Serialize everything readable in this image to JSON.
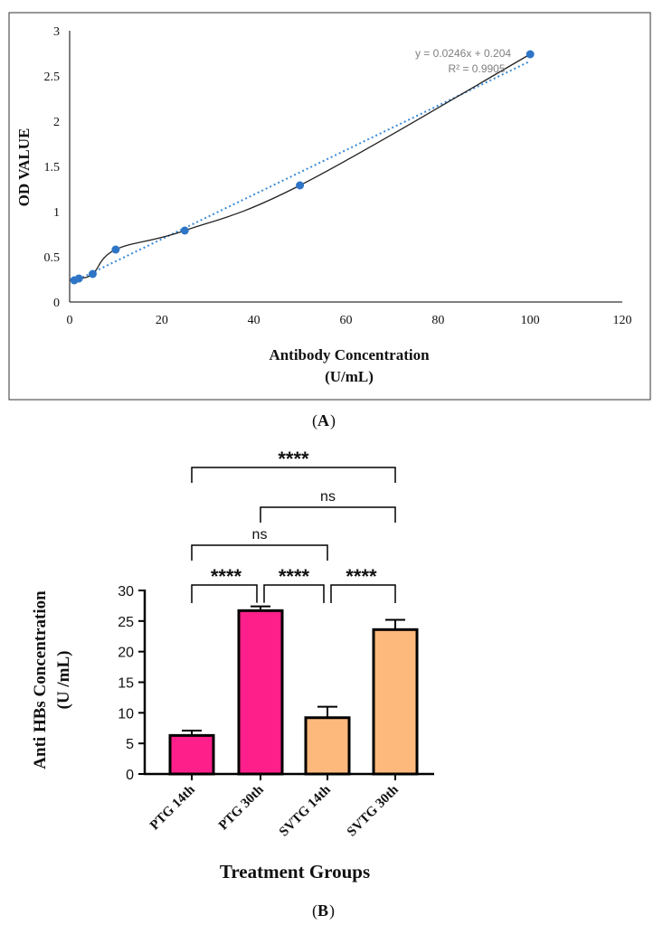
{
  "colors": {
    "marker_a": "#2e75c7",
    "trend_a": "#3a8ad6",
    "curve_a": "#222222",
    "ptg_fill": "#ff1f8a",
    "svtg_fill": "#fdb97c",
    "annotation_a": "#7f7f7f"
  },
  "chart_data": [
    {
      "id": "A",
      "panel_label": "A",
      "type": "scatter",
      "title": "",
      "xlabel_line1": "Antibody Concentration",
      "xlabel_line2": "(U/mL)",
      "ylabel": "OD VALUE",
      "xlim": [
        0,
        120
      ],
      "ylim": [
        0,
        3
      ],
      "xticks": [
        0,
        20,
        40,
        60,
        80,
        100,
        120
      ],
      "yticks": [
        0,
        0.5,
        1,
        1.5,
        2,
        2.5,
        3
      ],
      "grid": false,
      "series": [
        {
          "name": "OD",
          "x": [
            1,
            2,
            5,
            10,
            25,
            50,
            100
          ],
          "y": [
            0.24,
            0.26,
            0.31,
            0.58,
            0.79,
            1.29,
            2.74
          ]
        }
      ],
      "trendline": {
        "slope": 0.0246,
        "intercept": 0.204,
        "style": "dotted"
      },
      "equation_text": "y = 0.0246x + 0.204",
      "r2_text": "R² = 0.9905"
    },
    {
      "id": "B",
      "panel_label": "B",
      "type": "bar",
      "title": "",
      "xlabel": "Treatment Groups",
      "ylabel_line1": "Anti HBs Concentration",
      "ylabel_line2": "(U /mL)",
      "categories": [
        "PTG 14th",
        "PTG 30th",
        "SVTG 14th",
        "SVTG 30th"
      ],
      "values": [
        6.3,
        26.7,
        9.2,
        23.6
      ],
      "errors": [
        0.8,
        0.7,
        1.8,
        1.6
      ],
      "groups": [
        "PTG",
        "PTG",
        "SVTG",
        "SVTG"
      ],
      "ylim": [
        0,
        30
      ],
      "yticks": [
        0,
        5,
        10,
        15,
        20,
        25,
        30
      ],
      "comparisons": [
        {
          "from": 0,
          "to": 1,
          "label": "****",
          "tier": 0
        },
        {
          "from": 1,
          "to": 2,
          "label": "****",
          "tier": 0
        },
        {
          "from": 2,
          "to": 3,
          "label": "****",
          "tier": 0
        },
        {
          "from": 0,
          "to": 2,
          "label": "ns",
          "tier": 1
        },
        {
          "from": 1,
          "to": 3,
          "label": "ns",
          "tier": 2
        },
        {
          "from": 0,
          "to": 3,
          "label": "****",
          "tier": 3
        }
      ]
    }
  ]
}
